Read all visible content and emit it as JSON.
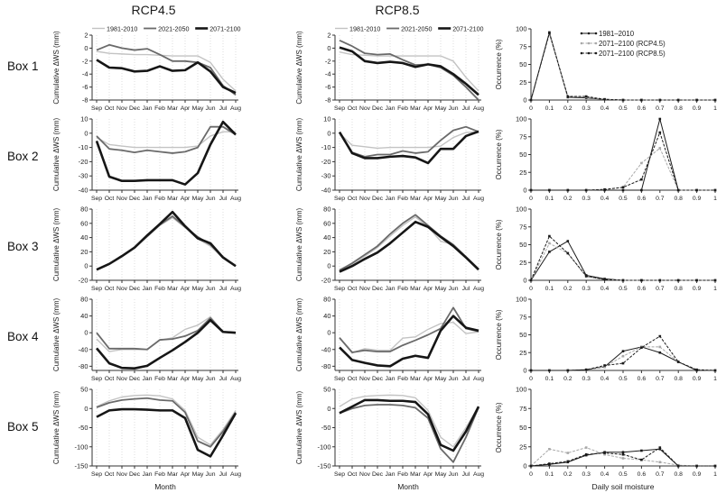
{
  "figure": {
    "col_titles": [
      "RCP4.5",
      "RCP8.5"
    ],
    "row_labels": [
      "Box 1",
      "Box 2",
      "Box 3",
      "Box 4",
      "Box 5"
    ],
    "months": [
      "Sep",
      "Oct",
      "Nov",
      "Dec",
      "Jan",
      "Feb",
      "Mar",
      "Apr",
      "May",
      "Jun",
      "Jul",
      "Aug"
    ],
    "moisture_ticks": [
      "0",
      "0.1",
      "0.2",
      "0.3",
      "0.4",
      "0.5",
      "0.6",
      "0.7",
      "0.8",
      "0.9",
      "1"
    ],
    "ylabel_line": "Cumulative ΔWS (mm)",
    "ylabel_occ": "Occurrence (%)",
    "xlabel_month": "Month",
    "xlabel_occ": "Daily soil moisture",
    "line_legend": [
      {
        "label": "1981-2010",
        "color": "#c3c3c3",
        "width": 1.4
      },
      {
        "label": "2021-2050",
        "color": "#6a6a6a",
        "width": 1.8
      },
      {
        "label": "2071-2100",
        "color": "#161616",
        "width": 2.6
      }
    ],
    "occ_legend": [
      {
        "label": "1981–2010",
        "color": "#1a1a1a",
        "width": 1,
        "dash": ""
      },
      {
        "label": "2071–2100 (RCP4.5)",
        "color": "#a8a8a8",
        "width": 1,
        "dash": "3 1.5"
      },
      {
        "label": "2071–2100 (RCP8.5)",
        "color": "#1a1a1a",
        "width": 1,
        "dash": "3 1.5"
      }
    ],
    "grid_color": "#cfcfcf",
    "axis_color": "#333333"
  },
  "chart_data": [
    {
      "box": "Box 1",
      "scenario": "RCP4.5",
      "type": "line",
      "kind": "line",
      "legend": true,
      "ylim": [
        -8,
        2
      ],
      "yticks": [
        2,
        0,
        -2,
        -4,
        -6,
        -8
      ],
      "series": [
        {
          "name": "1981-2010",
          "values": [
            -0.5,
            -0.8,
            -0.9,
            -1,
            -1,
            -1.1,
            -1.2,
            -1.2,
            -1.2,
            -2.2,
            -4.8,
            -6.6
          ]
        },
        {
          "name": "2021-2050",
          "values": [
            -0.3,
            0.5,
            0,
            -0.3,
            -0.1,
            -1,
            -2,
            -2,
            -2.2,
            -3,
            -5.8,
            -7.2
          ]
        },
        {
          "name": "2071-2100",
          "values": [
            -1.8,
            -3,
            -3.1,
            -3.6,
            -3.5,
            -2.8,
            -3.5,
            -3.4,
            -2.2,
            -3.6,
            -6,
            -6.9
          ]
        }
      ]
    },
    {
      "box": "Box 1",
      "scenario": "RCP8.5",
      "type": "line",
      "kind": "line",
      "legend": true,
      "ylim": [
        -8,
        2
      ],
      "yticks": [
        2,
        0,
        -2,
        -4,
        -6,
        -8
      ],
      "series": [
        {
          "name": "1981-2010",
          "values": [
            -0.6,
            -1,
            -1.1,
            -1.2,
            -1.2,
            -1.2,
            -1.2,
            -1.2,
            -1.2,
            -2,
            -4.5,
            -6.6
          ]
        },
        {
          "name": "2021-2050",
          "values": [
            1.2,
            0.3,
            -0.8,
            -1,
            -0.9,
            -1.8,
            -2.6,
            -2.5,
            -3,
            -4.2,
            -6,
            -8
          ]
        },
        {
          "name": "2071-2100",
          "values": [
            0.1,
            -0.5,
            -2,
            -2.3,
            -2.1,
            -2.3,
            -2.9,
            -2.5,
            -2.8,
            -4,
            -5.5,
            -7.2
          ]
        }
      ]
    },
    {
      "box": "Box 1",
      "scenario": "occurrence",
      "type": "line",
      "kind": "occ",
      "legend": true,
      "ylim": [
        0,
        100
      ],
      "yticks": [
        0,
        25,
        50,
        75,
        100
      ],
      "series": [
        {
          "name": "1981–2010",
          "values": [
            0,
            95,
            4,
            3,
            1,
            0,
            0,
            0,
            0,
            0,
            0
          ]
        },
        {
          "name": "2071–2100 (RCP4.5)",
          "values": [
            0,
            93,
            5,
            4,
            1,
            0,
            0,
            0,
            0,
            0,
            0
          ]
        },
        {
          "name": "2071–2100 (RCP8.5)",
          "values": [
            0,
            94,
            5,
            5,
            1,
            0,
            0,
            0,
            0,
            0,
            0
          ]
        }
      ]
    },
    {
      "box": "Box 2",
      "scenario": "RCP4.5",
      "type": "line",
      "kind": "line",
      "legend": false,
      "ylim": [
        -40,
        10
      ],
      "yticks": [
        10,
        0,
        -10,
        -20,
        -30,
        -40
      ],
      "series": [
        {
          "name": "1981-2010",
          "values": [
            -3,
            -8,
            -9,
            -10,
            -10,
            -10,
            -10,
            -10,
            -9,
            -2,
            1,
            1
          ]
        },
        {
          "name": "2021-2050",
          "values": [
            -2,
            -11,
            -12,
            -13.5,
            -12,
            -13,
            -14,
            -13,
            -10,
            4.5,
            4.5,
            -1
          ]
        },
        {
          "name": "2071-2100",
          "values": [
            -5.5,
            -30.5,
            -33.5,
            -33.5,
            -33,
            -33,
            -33,
            -36,
            -28,
            -8,
            8,
            -1
          ]
        }
      ]
    },
    {
      "box": "Box 2",
      "scenario": "RCP8.5",
      "type": "line",
      "kind": "line",
      "legend": false,
      "ylim": [
        -40,
        10
      ],
      "yticks": [
        10,
        0,
        -10,
        -20,
        -30,
        -40
      ],
      "series": [
        {
          "name": "1981-2010",
          "values": [
            0,
            -8.5,
            -9.5,
            -10.5,
            -10,
            -10,
            -10,
            -10,
            -9,
            -3,
            0.5,
            1
          ]
        },
        {
          "name": "2021-2050",
          "values": [
            0.5,
            -13.5,
            -16.5,
            -15,
            -15,
            -12.5,
            -14,
            -13,
            -5,
            2,
            4.5,
            1
          ]
        },
        {
          "name": "2071-2100",
          "values": [
            0.8,
            -14,
            -17.5,
            -17.5,
            -16.5,
            -16,
            -17,
            -21,
            -11,
            -11,
            -2,
            1.2
          ]
        }
      ]
    },
    {
      "box": "Box 2",
      "scenario": "occurrence",
      "type": "line",
      "kind": "occ",
      "legend": false,
      "ylim": [
        0,
        100
      ],
      "yticks": [
        0,
        25,
        50,
        75,
        100
      ],
      "series": [
        {
          "name": "1981–2010",
          "values": [
            0,
            0,
            0,
            0,
            0,
            0,
            0,
            100,
            0,
            0,
            0
          ]
        },
        {
          "name": "2071–2100 (RCP4.5)",
          "values": [
            0,
            0,
            0,
            0,
            1,
            4,
            38,
            59,
            0,
            0,
            0
          ]
        },
        {
          "name": "2071–2100 (RCP8.5)",
          "values": [
            0,
            0,
            0,
            0,
            1,
            4,
            15,
            81,
            0,
            0,
            0
          ]
        }
      ]
    },
    {
      "box": "Box 3",
      "scenario": "RCP4.5",
      "type": "line",
      "kind": "line",
      "legend": false,
      "ylim": [
        -20,
        80
      ],
      "yticks": [
        80,
        60,
        40,
        20,
        0,
        -20
      ],
      "series": [
        {
          "name": "1981-2010",
          "values": [
            -5,
            3,
            13,
            25,
            41,
            57,
            68,
            54,
            38,
            28,
            11,
            0
          ]
        },
        {
          "name": "2021-2050",
          "values": [
            -5,
            3,
            14,
            26,
            42,
            58,
            70,
            55,
            41,
            30,
            13,
            0
          ]
        },
        {
          "name": "2071-2100",
          "values": [
            -5,
            3,
            14,
            26,
            43,
            59,
            76,
            56,
            39,
            32,
            12,
            0
          ]
        }
      ]
    },
    {
      "box": "Box 3",
      "scenario": "RCP8.5",
      "type": "line",
      "kind": "line",
      "legend": false,
      "ylim": [
        -20,
        80
      ],
      "yticks": [
        80,
        60,
        40,
        20,
        0,
        -20
      ],
      "series": [
        {
          "name": "1981-2010",
          "values": [
            -5,
            3,
            14,
            26,
            42,
            57,
            69,
            55,
            35,
            30,
            12,
            -5
          ]
        },
        {
          "name": "2021-2050",
          "values": [
            -6,
            4,
            16,
            28,
            45,
            60,
            72,
            57,
            42,
            30,
            13,
            -4
          ]
        },
        {
          "name": "2071-2100",
          "values": [
            -8,
            0,
            10,
            19,
            32,
            47,
            62,
            55,
            41,
            28,
            12,
            -5
          ]
        }
      ]
    },
    {
      "box": "Box 3",
      "scenario": "occurrence",
      "type": "line",
      "kind": "occ",
      "legend": false,
      "ylim": [
        0,
        100
      ],
      "yticks": [
        0,
        25,
        50,
        75,
        100
      ],
      "series": [
        {
          "name": "1981–2010",
          "values": [
            0,
            40,
            55,
            7,
            2,
            0,
            0,
            0,
            0,
            0,
            0
          ]
        },
        {
          "name": "2071–2100 (RCP4.5)",
          "values": [
            0,
            52,
            38,
            5,
            1,
            0,
            0,
            0,
            0,
            0,
            0
          ]
        },
        {
          "name": "2071–2100 (RCP8.5)",
          "values": [
            0,
            62,
            38,
            6,
            1,
            0,
            0,
            0,
            0,
            0,
            0
          ]
        }
      ]
    },
    {
      "box": "Box 4",
      "scenario": "RCP4.5",
      "type": "line",
      "kind": "line",
      "legend": false,
      "ylim": [
        -90,
        80
      ],
      "yticks": [
        80,
        40,
        0,
        -40,
        -80
      ],
      "series": [
        {
          "name": "1981-2010",
          "values": [
            -15,
            -45,
            -40,
            -40,
            -40,
            -18,
            -12,
            8,
            18,
            38,
            2,
            0
          ]
        },
        {
          "name": "2021-2050",
          "values": [
            0,
            -38,
            -38,
            -38,
            -40,
            -17,
            -15,
            -8,
            5,
            35,
            2,
            0
          ]
        },
        {
          "name": "2071-2100",
          "values": [
            -37,
            -73,
            -84,
            -85,
            -79,
            -60,
            -42,
            -22,
            0,
            30,
            2,
            0
          ]
        }
      ]
    },
    {
      "box": "Box 4",
      "scenario": "RCP8.5",
      "type": "line",
      "kind": "line",
      "legend": false,
      "ylim": [
        -90,
        80
      ],
      "yticks": [
        80,
        40,
        0,
        -40,
        -80
      ],
      "series": [
        {
          "name": "1981-2010",
          "values": [
            -13,
            -48,
            -38,
            -42,
            -42,
            -13,
            -10,
            8,
            22,
            25,
            -2,
            2
          ]
        },
        {
          "name": "2021-2050",
          "values": [
            -12,
            -47,
            -42,
            -45,
            -45,
            -30,
            -18,
            -5,
            10,
            60,
            10,
            3
          ]
        },
        {
          "name": "2071-2100",
          "values": [
            -35,
            -65,
            -72,
            -78,
            -80,
            -62,
            -55,
            -60,
            5,
            40,
            12,
            5
          ]
        }
      ]
    },
    {
      "box": "Box 4",
      "scenario": "occurrence",
      "type": "line",
      "kind": "occ",
      "legend": false,
      "ylim": [
        0,
        100
      ],
      "yticks": [
        0,
        25,
        50,
        75,
        100
      ],
      "series": [
        {
          "name": "1981–2010",
          "values": [
            0,
            0,
            0,
            1,
            5,
            27,
            33,
            25,
            12,
            0,
            0
          ]
        },
        {
          "name": "2071–2100 (RCP4.5)",
          "values": [
            0,
            0,
            0,
            1,
            5,
            20,
            33,
            33,
            12,
            1,
            0
          ]
        },
        {
          "name": "2071–2100 (RCP8.5)",
          "values": [
            0,
            0,
            0,
            1,
            7,
            10,
            32,
            48,
            12,
            1,
            0
          ]
        }
      ]
    },
    {
      "box": "Box 5",
      "scenario": "RCP4.5",
      "type": "line",
      "kind": "line",
      "legend": false,
      "xlabel": true,
      "ylim": [
        -150,
        50
      ],
      "yticks": [
        50,
        0,
        -50,
        -100,
        -150
      ],
      "series": [
        {
          "name": "1981-2010",
          "values": [
            5,
            20,
            30,
            34,
            35,
            33,
            25,
            -5,
            -75,
            -95,
            -55,
            -5
          ]
        },
        {
          "name": "2021-2050",
          "values": [
            3,
            15,
            22,
            25,
            27,
            22,
            20,
            -10,
            -85,
            -100,
            -60,
            -10
          ]
        },
        {
          "name": "2071-2100",
          "values": [
            -22,
            -5,
            -2,
            -2,
            -3,
            -5,
            -5,
            -25,
            -108,
            -125,
            -70,
            -12
          ]
        }
      ]
    },
    {
      "box": "Box 5",
      "scenario": "RCP8.5",
      "type": "line",
      "kind": "line",
      "legend": false,
      "xlabel": true,
      "ylim": [
        -150,
        50
      ],
      "yticks": [
        50,
        0,
        -50,
        -100,
        -150
      ],
      "series": [
        {
          "name": "1981-2010",
          "values": [
            5,
            25,
            32,
            34,
            35,
            34,
            28,
            -5,
            -75,
            -100,
            -50,
            5
          ]
        },
        {
          "name": "2021-2050",
          "values": [
            -12,
            0,
            8,
            10,
            10,
            8,
            2,
            -25,
            -105,
            -140,
            -75,
            3
          ]
        },
        {
          "name": "2071-2100",
          "values": [
            -12,
            5,
            22,
            22,
            20,
            20,
            17,
            -15,
            -95,
            -110,
            -60,
            5
          ]
        }
      ]
    },
    {
      "box": "Box 5",
      "scenario": "occurrence",
      "type": "line",
      "kind": "occ",
      "legend": false,
      "xlabel": true,
      "ylim": [
        0,
        100
      ],
      "yticks": [
        0,
        25,
        50,
        75,
        100
      ],
      "series": [
        {
          "name": "1981–2010",
          "values": [
            0,
            2,
            5,
            14,
            18,
            18,
            20,
            22,
            0,
            0,
            0
          ]
        },
        {
          "name": "2071–2100 (RCP4.5)",
          "values": [
            0,
            22,
            17,
            24,
            15,
            10,
            8,
            5,
            1,
            0,
            0
          ]
        },
        {
          "name": "2071–2100 (RCP8.5)",
          "values": [
            0,
            3,
            6,
            15,
            17,
            15,
            8,
            24,
            0,
            0,
            0
          ]
        }
      ]
    }
  ]
}
